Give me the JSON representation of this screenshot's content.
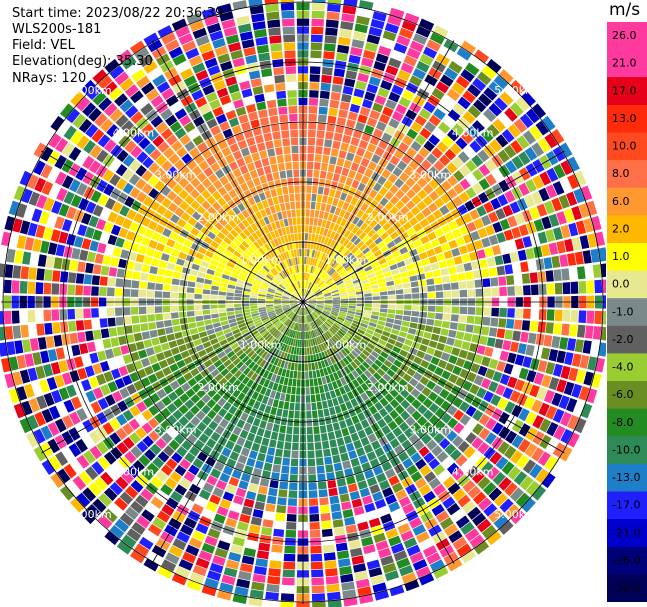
{
  "header": {
    "start_time": "Start time: 2023/08/22 20:36:39",
    "instrument": "WLS200s-181",
    "field": "Field: VEL",
    "elevation": "Elevation(deg): 35.30",
    "nrays": "NRays: 120"
  },
  "chart_data": {
    "type": "ppi-polar",
    "field": "VEL",
    "units": "m/s",
    "nrays": 120,
    "range_rings_km": [
      1.0,
      2.0,
      3.0,
      4.0,
      5.0
    ],
    "range_labels": [
      "1.00km",
      "1.00km",
      "1.00km",
      "1.00km",
      "2.00km",
      "2.00km",
      "2.00km",
      "2.00km",
      "3.00km",
      "3.00km",
      "3.00km",
      "3.00km",
      "4.00km",
      "4.00km",
      "4.00km",
      "4.00km",
      "5.00km",
      "5.00km",
      "5.00km",
      "5.00km"
    ],
    "colorbar": {
      "ticks": [
        "26.0",
        "21.0",
        "17.0",
        "13.0",
        "10.0",
        "8.0",
        "6.0",
        "2.0",
        "1.0",
        "0.0",
        "-1.0",
        "-2.0",
        "-4.0",
        "-6.0",
        "-8.0",
        "-10.0",
        "-13.0",
        "-17.0",
        "-21.0",
        "-26.0",
        "-30.0"
      ],
      "colors": [
        "#ff3a9f",
        "#ff3a9f",
        "#e6001a",
        "#ff2a0a",
        "#ff4a20",
        "#ff7048",
        "#ff9830",
        "#ffb800",
        "#ffff00",
        "#e8e890",
        "#7a8a8a",
        "#606060",
        "#9acd32",
        "#6b8e23",
        "#228b22",
        "#2e8b57",
        "#1e7fc8",
        "#2020ff",
        "#0000cc",
        "#00007a",
        "#000058"
      ]
    },
    "colors": {
      "grid": "#000000",
      "range_label": "#ffffff"
    }
  }
}
